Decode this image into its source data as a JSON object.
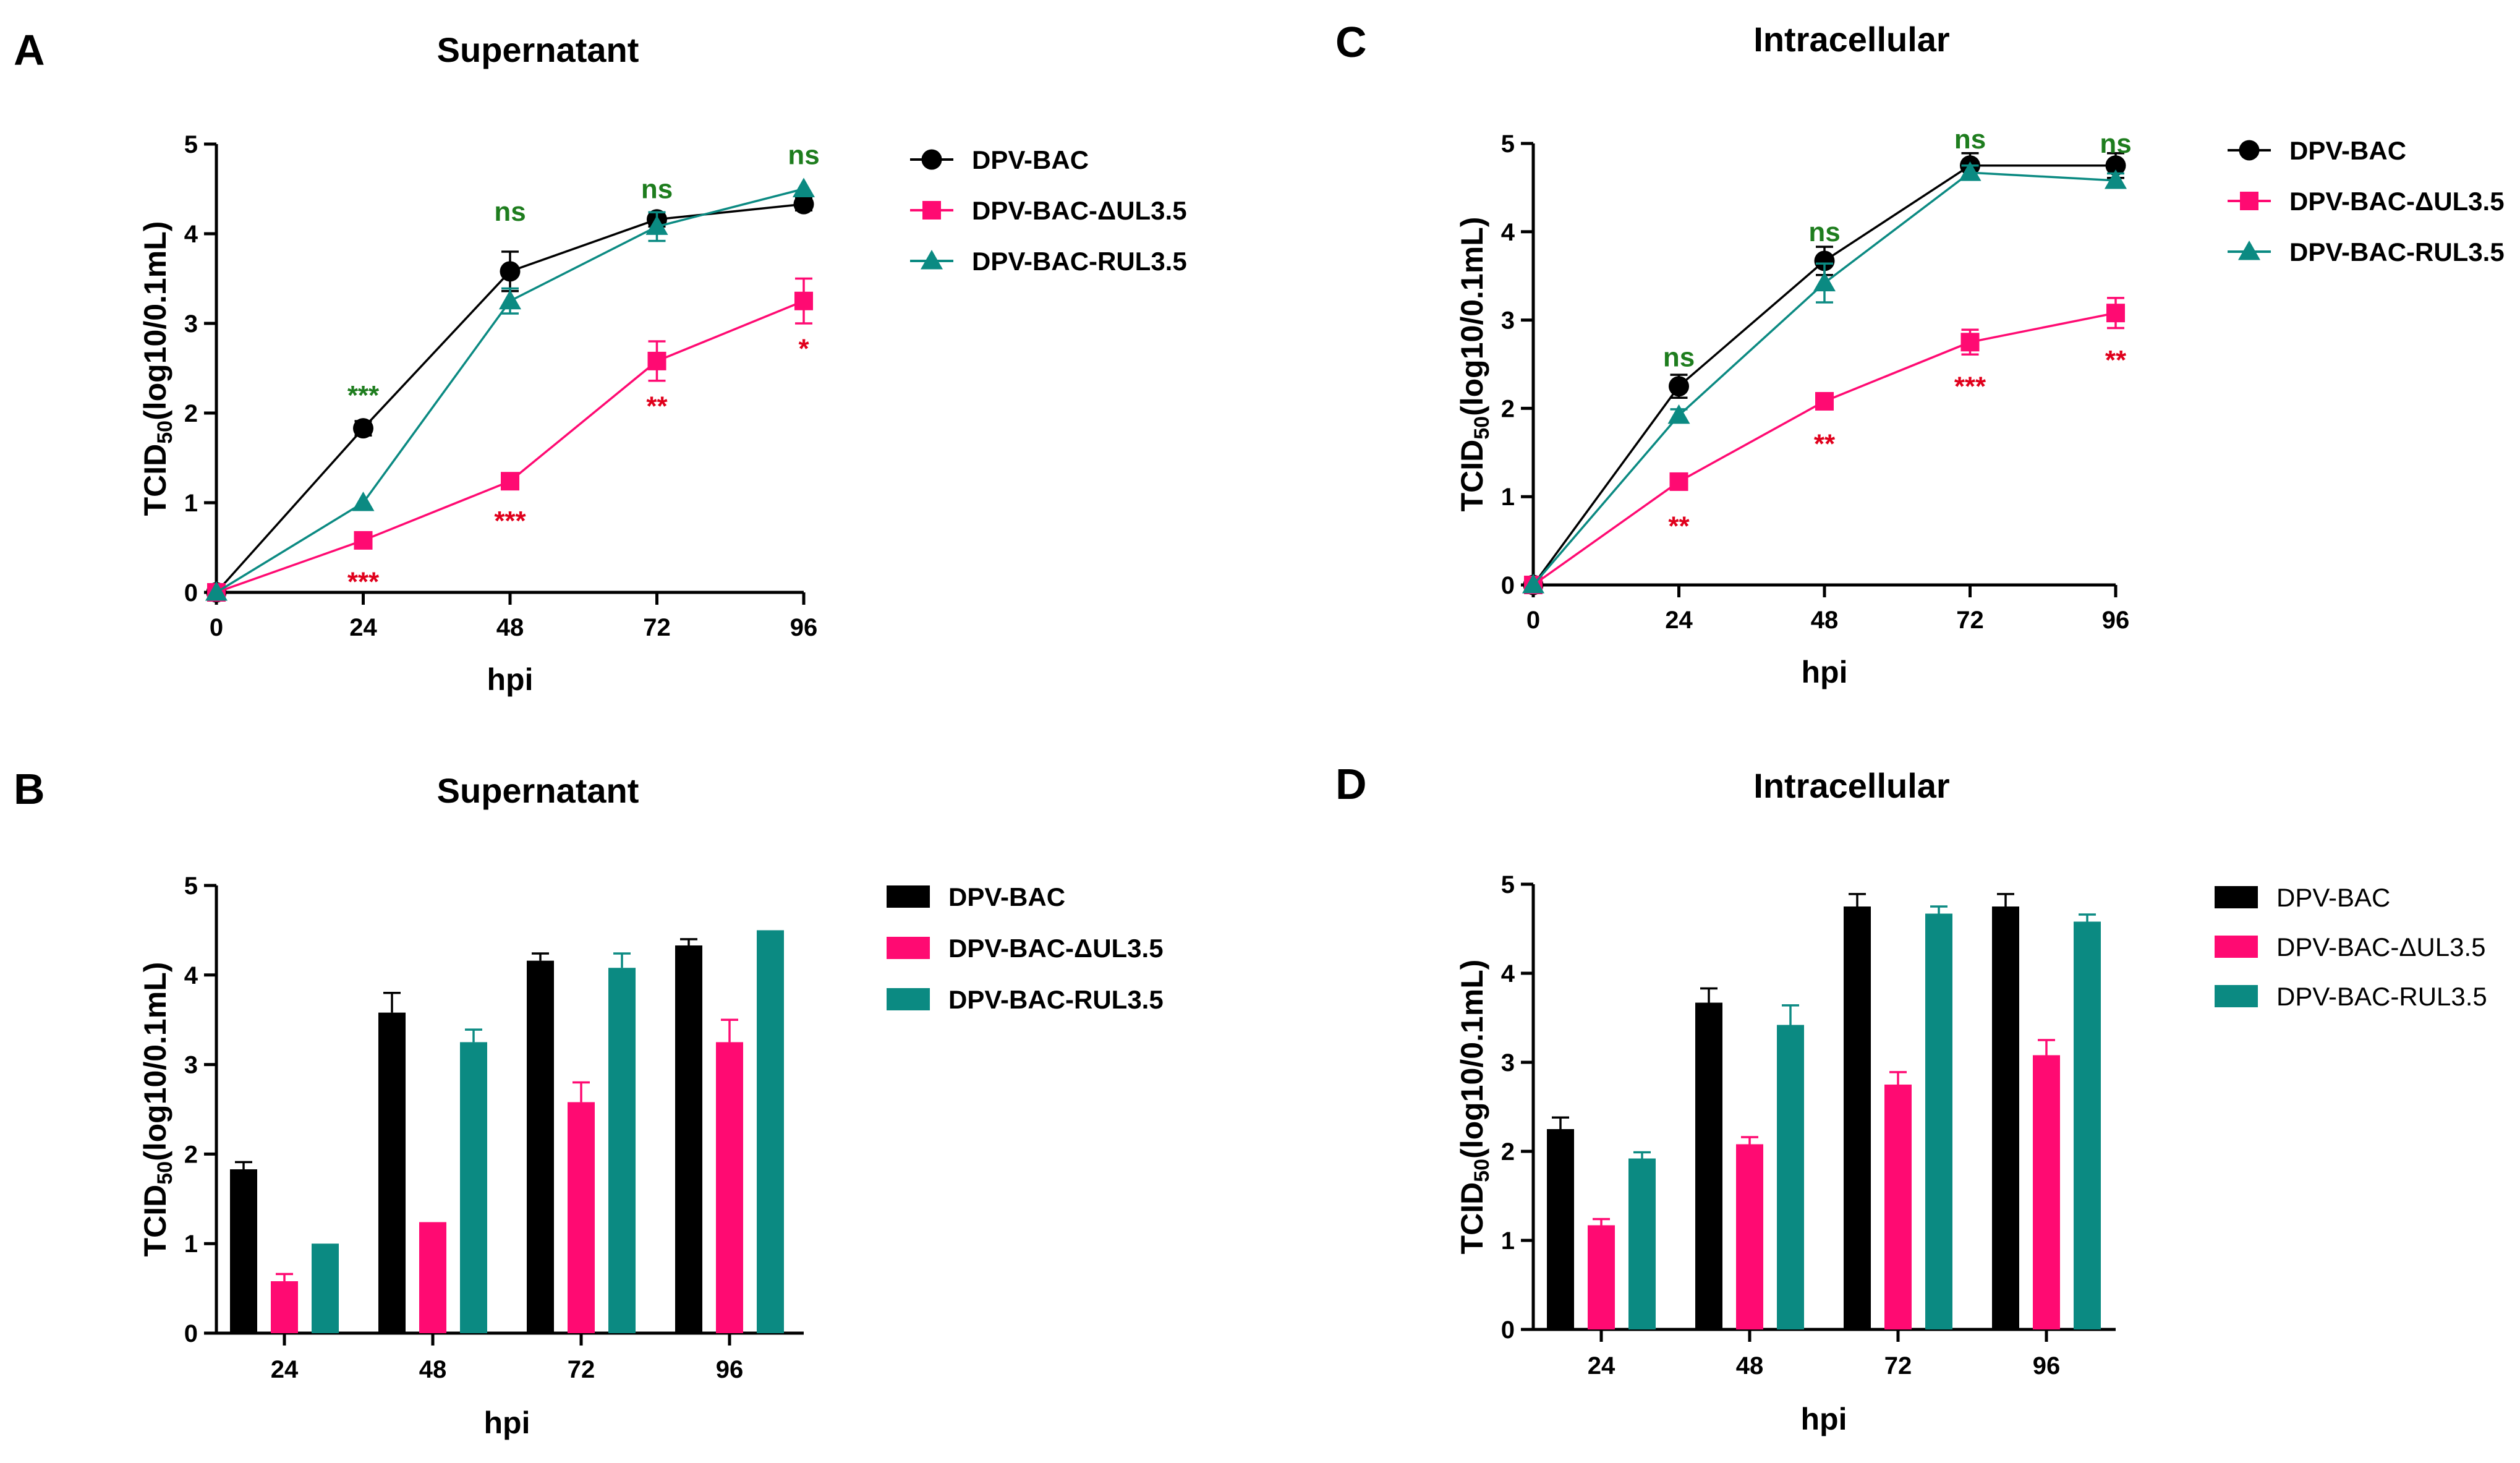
{
  "colors": {
    "dpv_bac": "#000000",
    "delta": "#ff0a72",
    "rul": "#0b8a82",
    "sig_green": "#1e7d1e",
    "sig_red": "#e0001c"
  },
  "chart_data": [
    {
      "panel": "A",
      "type": "line",
      "title": "Supernatant",
      "xlabel": "hpi",
      "ylabel_main": "TCID",
      "ylabel_sub": "50",
      "ylabel_tail": "(log10/0.1mL)",
      "xlim": [
        0,
        96
      ],
      "ylim": [
        0,
        5
      ],
      "x": [
        0,
        24,
        48,
        72,
        96
      ],
      "xticks": [
        "0",
        "24",
        "48",
        "72",
        "96"
      ],
      "yticks": [
        "0",
        "1",
        "2",
        "3",
        "4",
        "5"
      ],
      "legend_bold": true,
      "series": [
        {
          "name": "DPV-BAC",
          "color": "#000000",
          "marker": "circle",
          "values": [
            0,
            1.83,
            3.58,
            4.16,
            4.33
          ],
          "err": [
            0,
            0.08,
            0.22,
            0.08,
            0.07
          ]
        },
        {
          "name": "DPV-BAC-ΔUL3.5",
          "color": "#ff0a72",
          "marker": "square",
          "values": [
            0,
            0.58,
            1.24,
            2.58,
            3.25
          ],
          "err": [
            0,
            0.08,
            0,
            0.22,
            0.25
          ]
        },
        {
          "name": "DPV-BAC-RUL3.5",
          "color": "#0b8a82",
          "marker": "triangle",
          "values": [
            0,
            1.0,
            3.25,
            4.08,
            4.5
          ],
          "err": [
            0,
            0,
            0.14,
            0.16,
            0
          ]
        }
      ],
      "annotations": [
        {
          "text": "***",
          "x": 24,
          "y": 2.2,
          "color": "green"
        },
        {
          "text": "ns",
          "x": 48,
          "y": 4.25,
          "color": "green"
        },
        {
          "text": "ns",
          "x": 72,
          "y": 4.5,
          "color": "green"
        },
        {
          "text": "ns",
          "x": 96,
          "y": 4.88,
          "color": "green"
        },
        {
          "text": "***",
          "x": 24,
          "y": 0.12,
          "color": "red"
        },
        {
          "text": "***",
          "x": 48,
          "y": 0.8,
          "color": "red"
        },
        {
          "text": "**",
          "x": 72,
          "y": 2.08,
          "color": "red"
        },
        {
          "text": "*",
          "x": 96,
          "y": 2.72,
          "color": "red"
        }
      ]
    },
    {
      "panel": "C",
      "type": "line",
      "title": "Intracellular",
      "xlabel": "hpi",
      "ylabel_main": "TCID",
      "ylabel_sub": "50",
      "ylabel_tail": "(log10/0.1mL)",
      "xlim": [
        0,
        96
      ],
      "ylim": [
        0,
        5
      ],
      "x": [
        0,
        24,
        48,
        72,
        96
      ],
      "xticks": [
        "0",
        "24",
        "48",
        "72",
        "96"
      ],
      "yticks": [
        "0",
        "1",
        "2",
        "3",
        "4",
        "5"
      ],
      "legend_bold": true,
      "series": [
        {
          "name": "DPV-BAC",
          "color": "#000000",
          "marker": "circle",
          "values": [
            0,
            2.25,
            3.67,
            4.75,
            4.75
          ],
          "err": [
            0,
            0.13,
            0.16,
            0.14,
            0.14
          ]
        },
        {
          "name": "DPV-BAC-ΔUL3.5",
          "color": "#ff0a72",
          "marker": "square",
          "values": [
            0,
            1.17,
            2.08,
            2.75,
            3.08
          ],
          "err": [
            0,
            0.07,
            0.08,
            0.14,
            0.17
          ]
        },
        {
          "name": "DPV-BAC-RUL3.5",
          "color": "#0b8a82",
          "marker": "triangle",
          "values": [
            0,
            1.92,
            3.42,
            4.67,
            4.58
          ],
          "err": [
            0,
            0.07,
            0.22,
            0.08,
            0.08
          ]
        }
      ],
      "annotations": [
        {
          "text": "ns",
          "x": 24,
          "y": 2.58,
          "color": "green"
        },
        {
          "text": "ns",
          "x": 48,
          "y": 4.0,
          "color": "green"
        },
        {
          "text": "ns",
          "x": 72,
          "y": 5.05,
          "color": "green"
        },
        {
          "text": "ns",
          "x": 96,
          "y": 5.0,
          "color": "green"
        },
        {
          "text": "**",
          "x": 24,
          "y": 0.67,
          "color": "red"
        },
        {
          "text": "**",
          "x": 48,
          "y": 1.6,
          "color": "red"
        },
        {
          "text": "***",
          "x": 72,
          "y": 2.25,
          "color": "red"
        },
        {
          "text": "**",
          "x": 96,
          "y": 2.55,
          "color": "red"
        }
      ]
    },
    {
      "panel": "B",
      "type": "bar",
      "title": "Supernatant",
      "xlabel": "hpi",
      "ylabel_main": "TCID",
      "ylabel_sub": "50",
      "ylabel_tail": "(log10/0.1mL)",
      "ylim": [
        0,
        5
      ],
      "categories": [
        "24",
        "48",
        "72",
        "96"
      ],
      "yticks": [
        "0",
        "1",
        "2",
        "3",
        "4",
        "5"
      ],
      "legend_bold": true,
      "series": [
        {
          "name": "DPV-BAC",
          "color": "#000000",
          "values": [
            1.83,
            3.58,
            4.16,
            4.33
          ],
          "err": [
            0.08,
            0.22,
            0.08,
            0.07
          ]
        },
        {
          "name": "DPV-BAC-ΔUL3.5",
          "color": "#ff0a72",
          "values": [
            0.58,
            1.24,
            2.58,
            3.25
          ],
          "err": [
            0.08,
            0,
            0.22,
            0.25
          ]
        },
        {
          "name": "DPV-BAC-RUL3.5",
          "color": "#0b8a82",
          "values": [
            1.0,
            3.25,
            4.08,
            4.5
          ],
          "err": [
            0,
            0.14,
            0.16,
            0
          ]
        }
      ]
    },
    {
      "panel": "D",
      "type": "bar",
      "title": "Intracellular",
      "xlabel": "hpi",
      "ylabel_main": "TCID",
      "ylabel_sub": "50",
      "ylabel_tail": "(log10/0.1mL)",
      "ylim": [
        0,
        5
      ],
      "categories": [
        "24",
        "48",
        "72",
        "96"
      ],
      "yticks": [
        "0",
        "1",
        "2",
        "3",
        "4",
        "5"
      ],
      "legend_bold": false,
      "series": [
        {
          "name": "DPV-BAC",
          "color": "#000000",
          "values": [
            2.25,
            3.67,
            4.75,
            4.75
          ],
          "err": [
            0.13,
            0.16,
            0.14,
            0.14
          ]
        },
        {
          "name": "DPV-BAC-ΔUL3.5",
          "color": "#ff0a72",
          "values": [
            1.17,
            2.08,
            2.75,
            3.08
          ],
          "err": [
            0.07,
            0.08,
            0.14,
            0.17
          ]
        },
        {
          "name": "DPV-BAC-RUL3.5",
          "color": "#0b8a82",
          "values": [
            1.92,
            3.42,
            4.67,
            4.58
          ],
          "err": [
            0.07,
            0.22,
            0.08,
            0.08
          ]
        }
      ]
    }
  ]
}
